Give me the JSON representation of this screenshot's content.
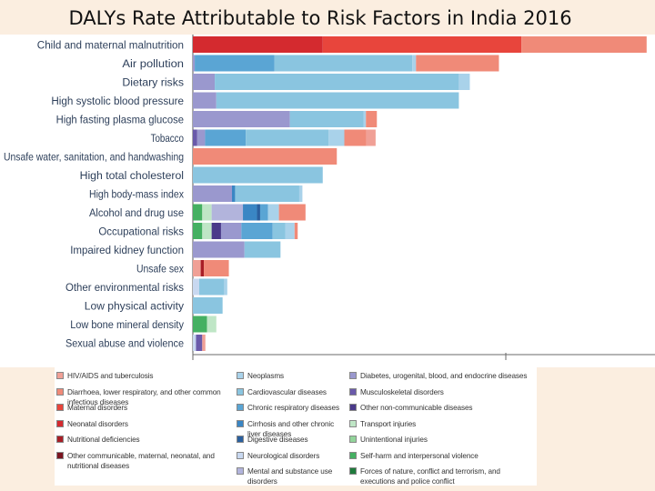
{
  "title": "DALYs Rate Attributable to Risk Factors in India 2016",
  "colors": {
    "hiv_tb": "#f0a096",
    "diarrhoea_lri": "#f08a78",
    "maternal": "#e8453c",
    "neonatal": "#d42a2f",
    "nutritional": "#a81e26",
    "other_cmnn": "#7a1420",
    "neoplasms": "#a9d2ea",
    "cardiovascular": "#8ac5e0",
    "chronic_respiratory": "#5aa5d4",
    "cirrhosis": "#3a86c4",
    "digestive": "#2a5f9e",
    "neurological": "#c8d8f0",
    "mental_substance": "#b2b4dc",
    "diabetes_urogenital": "#9a98ce",
    "musculoskeletal": "#6a5aaa",
    "other_ncd": "#4a3a8a",
    "transport": "#bfe6c6",
    "unintentional": "#92d49a",
    "self_harm": "#45b062",
    "forces_of_nature": "#1f7a3c"
  },
  "chart_data": {
    "type": "bar",
    "orientation": "horizontal",
    "stacked": true,
    "title": "DALYs Rate Attributable to Risk Factors in India 2016",
    "xlabel": "",
    "ylabel": "",
    "xlim": [
      0,
      100
    ],
    "categories": [
      "Child and maternal malnutrition",
      "Air pollution",
      "Dietary risks",
      "High systolic blood pressure",
      "High fasting plasma glucose",
      "Tobacco",
      "Unsafe water, sanitation, and handwashing",
      "High total cholesterol",
      "High body-mass index",
      "Alcohol and drug use",
      "Occupational risks",
      "Impaired kidney function",
      "Unsafe sex",
      "Other environmental risks",
      "Low physical activity",
      "Low bone mineral density",
      "Sexual abuse and violence"
    ],
    "rows": [
      [
        {
          "c": "neonatal",
          "v": 41.5
        },
        {
          "c": "maternal",
          "v": 63.5
        },
        {
          "c": "diarrhoea_lri",
          "v": 40.0
        }
      ],
      [
        {
          "c": "diabetes_urogenital",
          "v": 0.6
        },
        {
          "c": "chronic_respiratory",
          "v": 25.5
        },
        {
          "c": "cardiovascular",
          "v": 44.0
        },
        {
          "c": "neoplasms",
          "v": 1.2
        },
        {
          "c": "diarrhoea_lri",
          "v": 26.5
        }
      ],
      [
        {
          "c": "diabetes_urogenital",
          "v": 7.0
        },
        {
          "c": "cardiovascular",
          "v": 78.0
        },
        {
          "c": "neoplasms",
          "v": 3.5
        }
      ],
      [
        {
          "c": "diabetes_urogenital",
          "v": 7.5
        },
        {
          "c": "cardiovascular",
          "v": 77.5
        }
      ],
      [
        {
          "c": "diabetes_urogenital",
          "v": 31.0
        },
        {
          "c": "cardiovascular",
          "v": 23.5
        },
        {
          "c": "neoplasms",
          "v": 0.8
        },
        {
          "c": "diarrhoea_lri",
          "v": 3.5
        }
      ],
      [
        {
          "c": "musculoskeletal",
          "v": 1.4
        },
        {
          "c": "diabetes_urogenital",
          "v": 2.5
        },
        {
          "c": "chronic_respiratory",
          "v": 13.0
        },
        {
          "c": "cardiovascular",
          "v": 26.5
        },
        {
          "c": "neoplasms",
          "v": 5.0
        },
        {
          "c": "diarrhoea_lri",
          "v": 7.0
        },
        {
          "c": "hiv_tb",
          "v": 3.0
        }
      ],
      [
        {
          "c": "diarrhoea_lri",
          "v": 46.0
        }
      ],
      [
        {
          "c": "cardiovascular",
          "v": 41.5
        }
      ],
      [
        {
          "c": "diabetes_urogenital",
          "v": 12.5
        },
        {
          "c": "cirrhosis",
          "v": 1.0
        },
        {
          "c": "cardiovascular",
          "v": 20.5
        },
        {
          "c": "neoplasms",
          "v": 1.0
        }
      ],
      [
        {
          "c": "self_harm",
          "v": 3.0
        },
        {
          "c": "transport",
          "v": 3.0
        },
        {
          "c": "mental_substance",
          "v": 10.0
        },
        {
          "c": "cirrhosis",
          "v": 4.5
        },
        {
          "c": "digestive",
          "v": 1.0
        },
        {
          "c": "chronic_respiratory",
          "v": 2.5
        },
        {
          "c": "neoplasms",
          "v": 3.5
        },
        {
          "c": "diarrhoea_lri",
          "v": 8.5
        }
      ],
      [
        {
          "c": "self_harm",
          "v": 3.0
        },
        {
          "c": "transport",
          "v": 3.0
        },
        {
          "c": "other_ncd",
          "v": 3.0
        },
        {
          "c": "diabetes_urogenital",
          "v": 6.5
        },
        {
          "c": "chronic_respiratory",
          "v": 10.0
        },
        {
          "c": "cardiovascular",
          "v": 4.0
        },
        {
          "c": "neoplasms",
          "v": 3.0
        },
        {
          "c": "diarrhoea_lri",
          "v": 1.0
        }
      ],
      [
        {
          "c": "diabetes_urogenital",
          "v": 16.5
        },
        {
          "c": "cardiovascular",
          "v": 11.5
        }
      ],
      [
        {
          "c": "hiv_tb",
          "v": 2.5
        },
        {
          "c": "nutritional",
          "v": 1.0
        },
        {
          "c": "diarrhoea_lri",
          "v": 8.0
        }
      ],
      [
        {
          "c": "neurological",
          "v": 2.0
        },
        {
          "c": "cardiovascular",
          "v": 8.0
        },
        {
          "c": "neoplasms",
          "v": 1.0
        }
      ],
      [
        {
          "c": "cardiovascular",
          "v": 9.5
        }
      ],
      [
        {
          "c": "self_harm",
          "v": 4.5
        },
        {
          "c": "transport",
          "v": 3.0
        }
      ],
      [
        {
          "c": "neurological",
          "v": 1.0
        },
        {
          "c": "musculoskeletal",
          "v": 2.0
        },
        {
          "c": "hiv_tb",
          "v": 1.0
        }
      ]
    ],
    "legend": [
      [
        {
          "label": "HIV/AIDS and tuberculosis",
          "color": "hiv_tb"
        },
        {
          "label": "Diarrhoea, lower respiratory, and other common infectious diseases",
          "color": "diarrhoea_lri"
        },
        {
          "label": "Maternal disorders",
          "color": "maternal"
        },
        {
          "label": "Neonatal disorders",
          "color": "neonatal"
        },
        {
          "label": "Nutritional deficiencies",
          "color": "nutritional"
        },
        {
          "label": "Other communicable, maternal, neonatal, and nutritional diseases",
          "color": "other_cmnn"
        }
      ],
      [
        {
          "label": "Neoplasms",
          "color": "neoplasms"
        },
        {
          "label": "Cardiovascular diseases",
          "color": "cardiovascular"
        },
        {
          "label": "Chronic respiratory diseases",
          "color": "chronic_respiratory"
        },
        {
          "label": "Cirrhosis and other chronic liver diseases",
          "color": "cirrhosis"
        },
        {
          "label": "Digestive diseases",
          "color": "digestive"
        },
        {
          "label": "Neurological disorders",
          "color": "neurological"
        },
        {
          "label": "Mental and substance use disorders",
          "color": "mental_substance"
        }
      ],
      [
        {
          "label": "Diabetes, urogenital, blood, and endocrine diseases",
          "color": "diabetes_urogenital"
        },
        {
          "label": "Musculoskeletal disorders",
          "color": "musculoskeletal"
        },
        {
          "label": "Other non-communicable diseases",
          "color": "other_ncd"
        },
        {
          "label": "Transport injuries",
          "color": "transport"
        },
        {
          "label": "Unintentional injuries",
          "color": "unintentional"
        },
        {
          "label": "Self-harm and interpersonal violence",
          "color": "self_harm"
        },
        {
          "label": "Forces of nature, conflict and terrorism, and executions and police conflict",
          "color": "forces_of_nature"
        }
      ]
    ]
  }
}
